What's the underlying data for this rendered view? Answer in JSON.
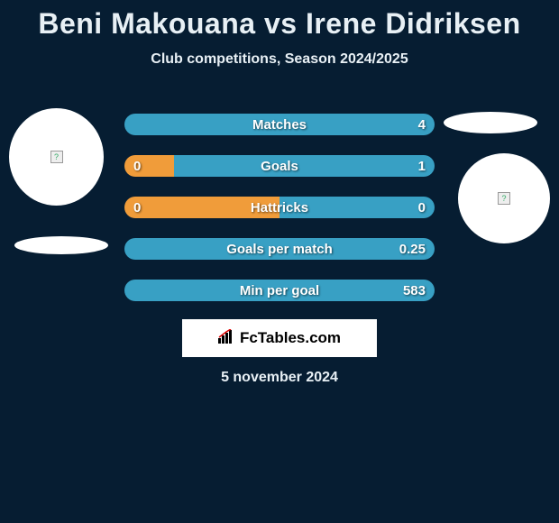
{
  "title": "Beni Makouana vs Irene Didriksen",
  "subtitle": "Club competitions, Season 2024/2025",
  "date": "5 november 2024",
  "logo": "FcTables.com",
  "colors": {
    "background": "#061d32",
    "text": "#e8f0f5",
    "left_fill": "#f09c3a",
    "right_fill": "#38a0c4",
    "white": "#ffffff"
  },
  "bars": [
    {
      "label": "Matches",
      "left_val": "",
      "right_val": "4",
      "left_pct": 0,
      "right_pct": 100
    },
    {
      "label": "Goals",
      "left_val": "0",
      "right_val": "1",
      "left_pct": 16,
      "right_pct": 84
    },
    {
      "label": "Hattricks",
      "left_val": "0",
      "right_val": "0",
      "left_pct": 50,
      "right_pct": 50
    },
    {
      "label": "Goals per match",
      "left_val": "",
      "right_val": "0.25",
      "left_pct": 0,
      "right_pct": 100
    },
    {
      "label": "Min per goal",
      "left_val": "",
      "right_val": "583",
      "left_pct": 0,
      "right_pct": 100
    }
  ]
}
